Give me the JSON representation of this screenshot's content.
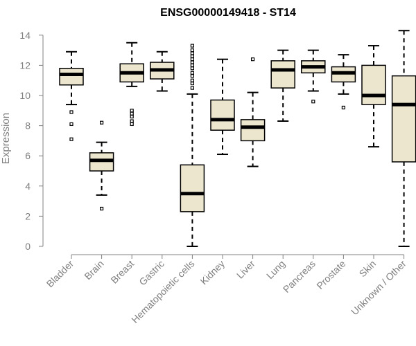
{
  "chart_data": {
    "type": "boxplot",
    "title": "ENSG00000149418 - ST14",
    "xlabel": "",
    "ylabel": "Expression",
    "ylim": [
      0,
      14
    ],
    "yticks": [
      0,
      2,
      4,
      6,
      8,
      10,
      12,
      14
    ],
    "grid": false,
    "colors": {
      "box_fill": "#ede6cf",
      "median": "#000000",
      "axis": "#808080",
      "title": "#000000"
    },
    "categories": [
      "Bladder",
      "Brain",
      "Breast",
      "Gastric",
      "Hematopoietic cells",
      "Kidney",
      "Liver",
      "Lung",
      "Pancreas",
      "Prostate",
      "Skin",
      "Unknown / Other"
    ],
    "boxes": [
      {
        "name": "Bladder",
        "whisker_low": 9.4,
        "q1": 10.7,
        "median": 11.4,
        "q3": 11.8,
        "whisker_high": 12.9,
        "outliers": [
          8.9,
          8.1,
          7.1
        ]
      },
      {
        "name": "Brain",
        "whisker_low": 3.4,
        "q1": 5.0,
        "median": 5.7,
        "q3": 6.2,
        "whisker_high": 6.9,
        "outliers": [
          8.2,
          2.5
        ]
      },
      {
        "name": "Breast",
        "whisker_low": 10.6,
        "q1": 10.9,
        "median": 11.5,
        "q3": 12.1,
        "whisker_high": 13.5,
        "outliers": [
          9.0,
          8.8,
          8.6,
          8.3,
          8.1
        ]
      },
      {
        "name": "Gastric",
        "whisker_low": 10.3,
        "q1": 11.1,
        "median": 11.7,
        "q3": 12.2,
        "whisker_high": 12.9,
        "outliers": []
      },
      {
        "name": "Hematopoietic cells",
        "whisker_low": 0.0,
        "q1": 2.3,
        "median": 3.5,
        "q3": 5.4,
        "whisker_high": 10.1,
        "outliers": [
          10.5,
          10.8,
          11.0,
          11.3,
          11.5,
          11.8,
          12.0,
          12.2,
          12.4,
          12.6,
          12.8,
          13.0,
          13.3
        ]
      },
      {
        "name": "Kidney",
        "whisker_low": 6.1,
        "q1": 7.7,
        "median": 8.4,
        "q3": 9.7,
        "whisker_high": 12.4,
        "outliers": []
      },
      {
        "name": "Liver",
        "whisker_low": 5.3,
        "q1": 7.0,
        "median": 7.9,
        "q3": 8.4,
        "whisker_high": 10.2,
        "outliers": [
          12.4
        ]
      },
      {
        "name": "Lung",
        "whisker_low": 8.3,
        "q1": 10.5,
        "median": 11.7,
        "q3": 12.3,
        "whisker_high": 13.0,
        "outliers": []
      },
      {
        "name": "Pancreas",
        "whisker_low": 10.3,
        "q1": 11.5,
        "median": 11.9,
        "q3": 12.3,
        "whisker_high": 13.0,
        "outliers": [
          9.6
        ]
      },
      {
        "name": "Prostate",
        "whisker_low": 10.1,
        "q1": 10.9,
        "median": 11.5,
        "q3": 11.9,
        "whisker_high": 12.7,
        "outliers": [
          9.2
        ]
      },
      {
        "name": "Skin",
        "whisker_low": 6.6,
        "q1": 9.4,
        "median": 10.0,
        "q3": 12.0,
        "whisker_high": 13.3,
        "outliers": []
      },
      {
        "name": "Unknown / Other",
        "whisker_low": 0.0,
        "q1": 5.6,
        "median": 9.4,
        "q3": 11.3,
        "whisker_high": 14.3,
        "outliers": []
      }
    ]
  }
}
